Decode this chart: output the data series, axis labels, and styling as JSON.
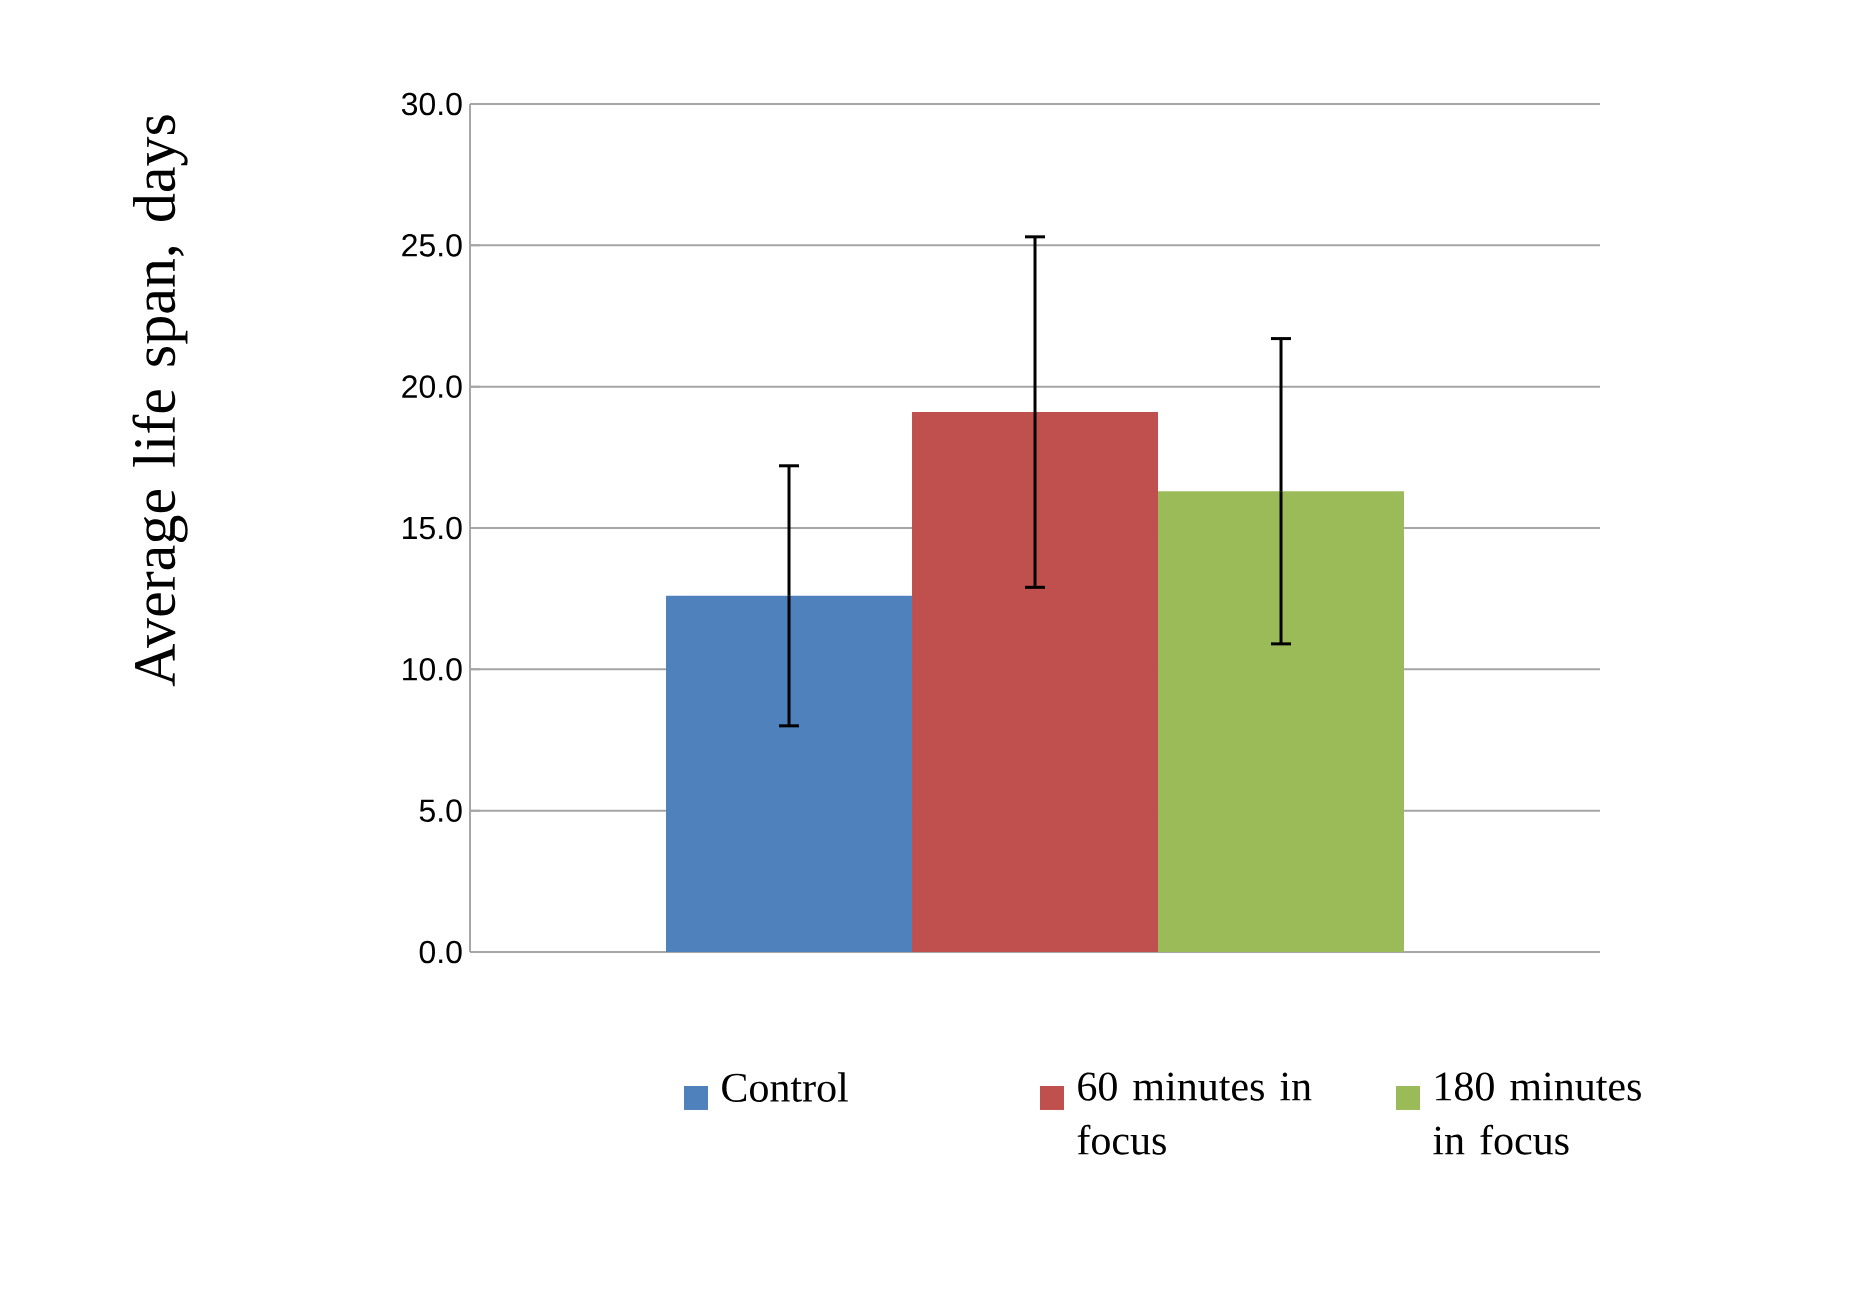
{
  "chart_data": {
    "type": "bar",
    "ylabel": "Average life span, days",
    "categories": [
      null
    ],
    "series": [
      {
        "name": "Control",
        "color": "#4f81bd",
        "values": [
          12.6
        ],
        "errors": [
          4.6
        ]
      },
      {
        "name": "60 minutes in focus",
        "color": "#c0504d",
        "values": [
          19.1
        ],
        "errors": [
          6.2
        ]
      },
      {
        "name": "180 minutes in focus",
        "color": "#9bbb59",
        "values": [
          16.3
        ],
        "errors": [
          5.4
        ]
      }
    ],
    "ylim": [
      0,
      30
    ],
    "yticks": [
      {
        "value": 0,
        "label": "0.0"
      },
      {
        "value": 5,
        "label": "5.0"
      },
      {
        "value": 10,
        "label": "10.0"
      },
      {
        "value": 15,
        "label": "15.0"
      },
      {
        "value": 20,
        "label": "20.0"
      },
      {
        "value": 25,
        "label": "25.0"
      },
      {
        "value": 30,
        "label": "30.0"
      }
    ],
    "grid": "y",
    "legend": "bottom"
  }
}
